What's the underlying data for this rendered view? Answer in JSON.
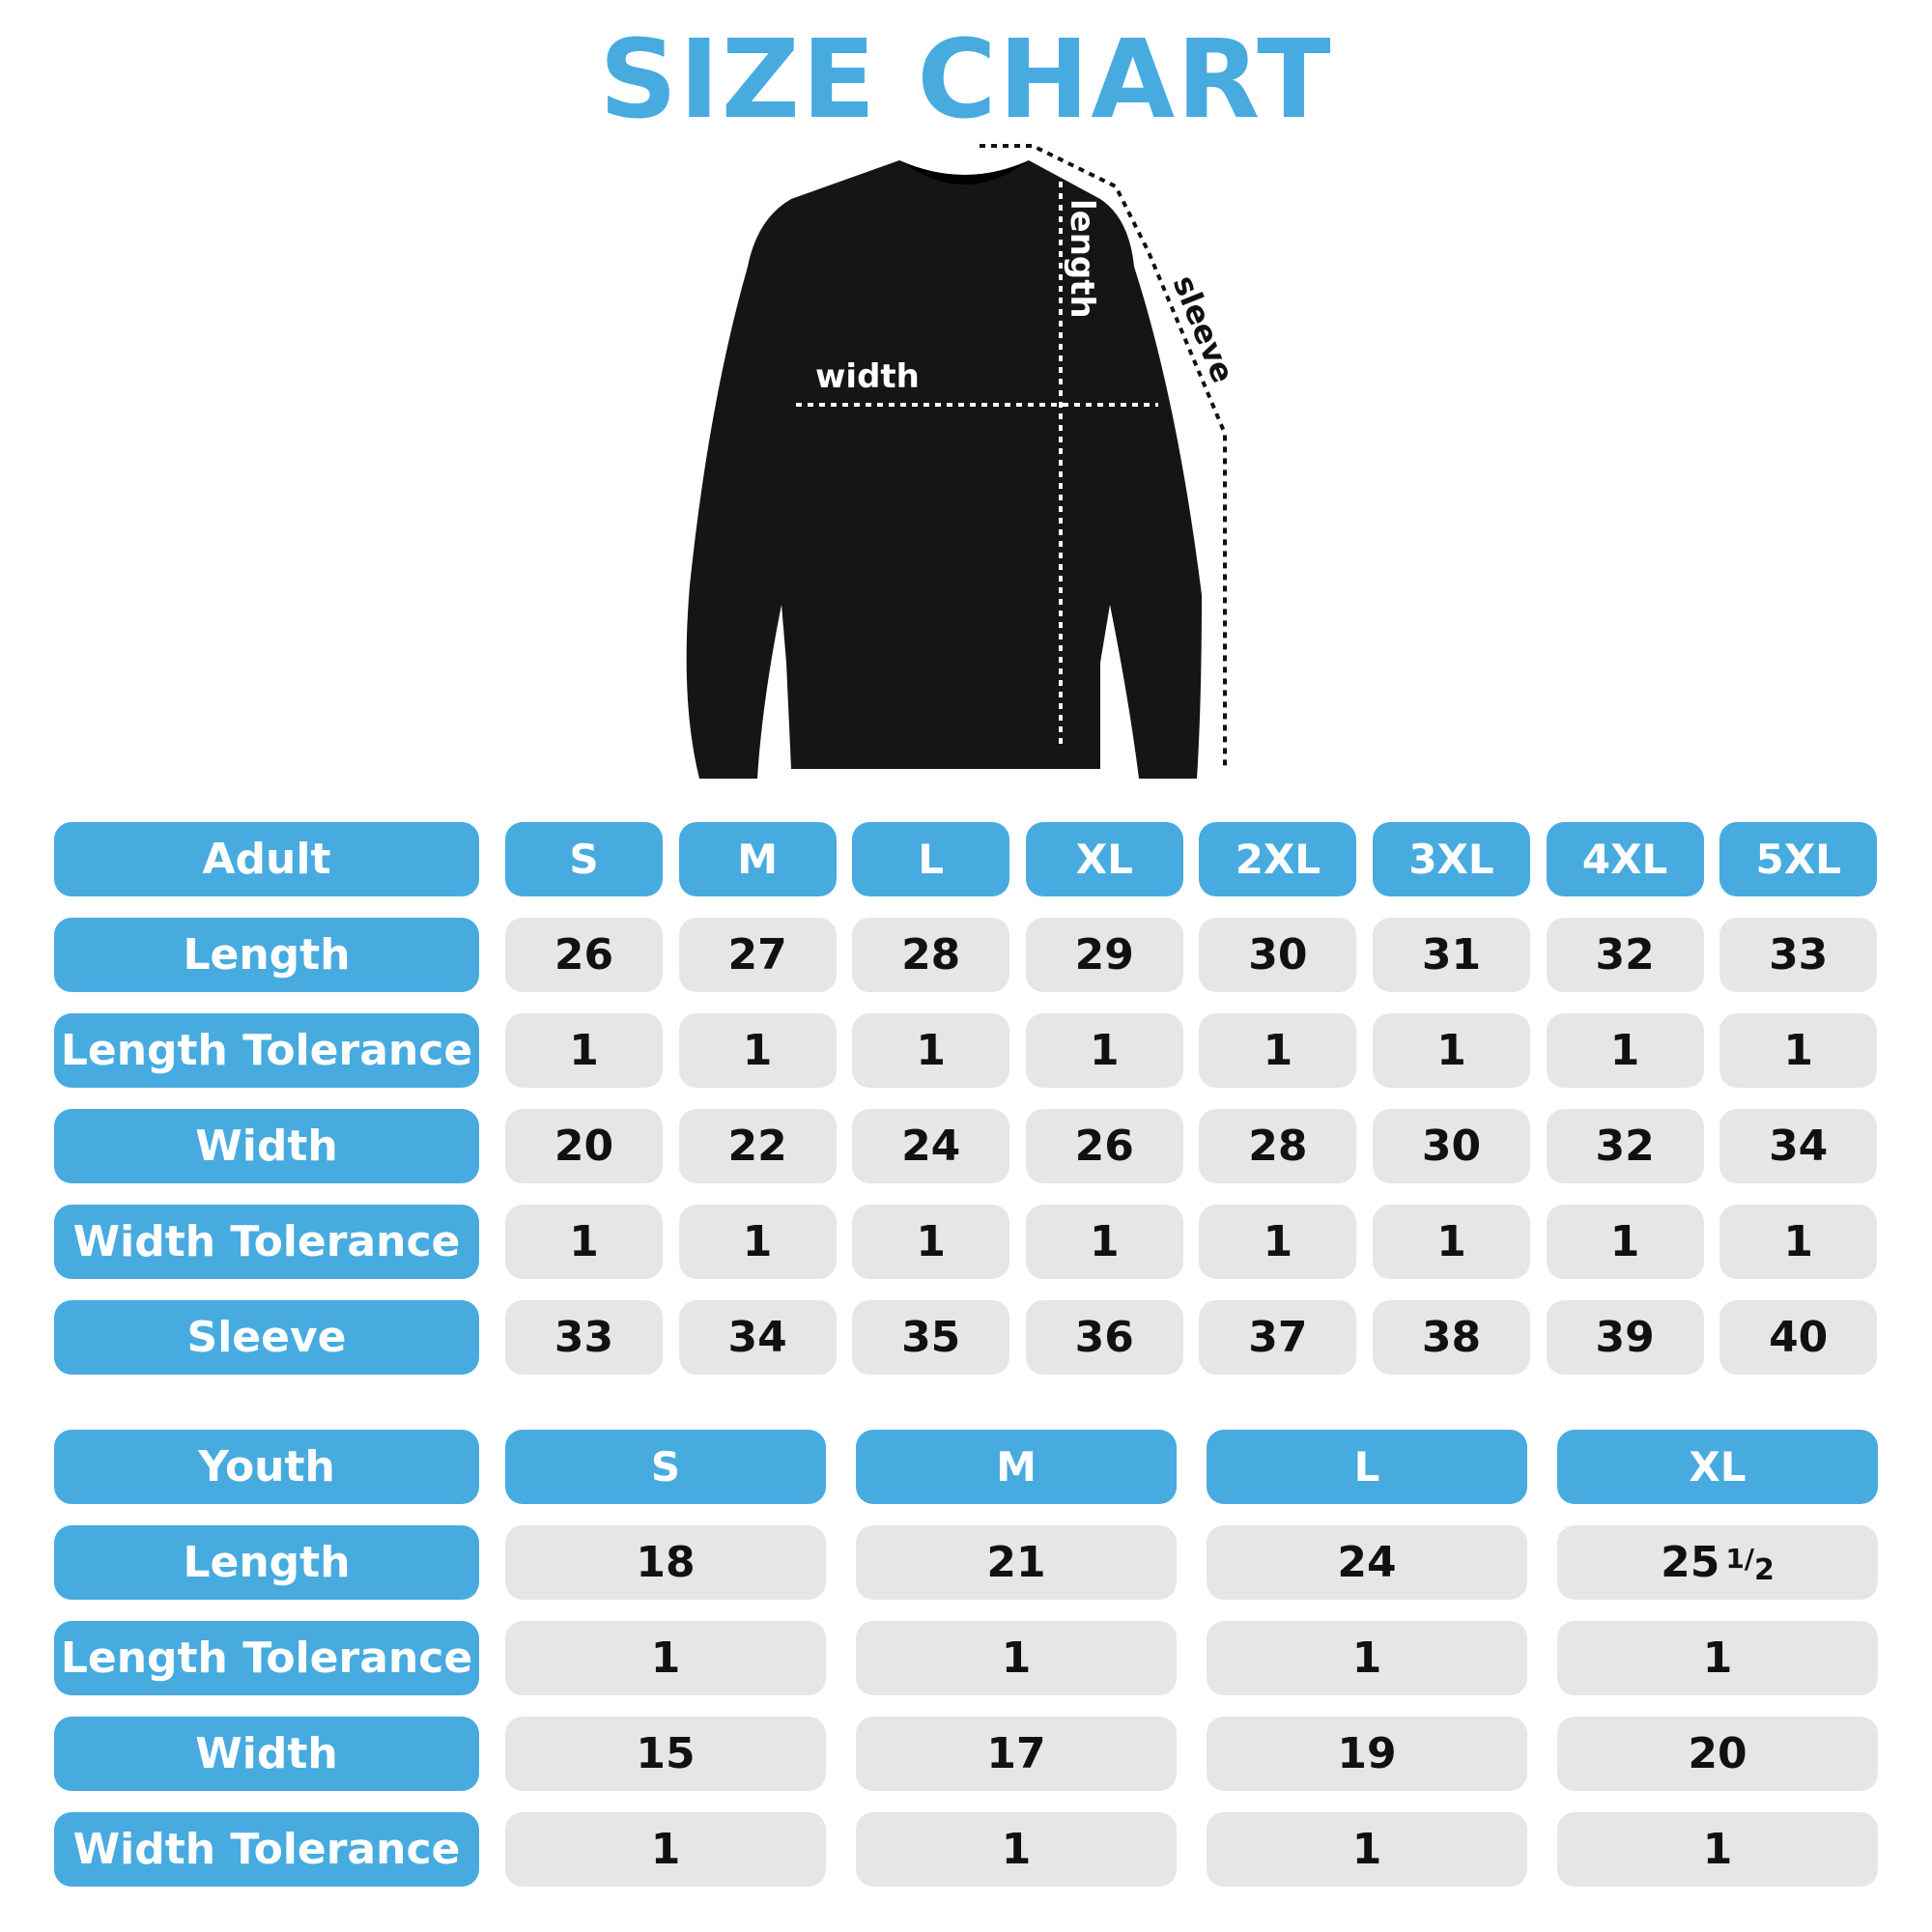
{
  "title": "SIZE CHART",
  "diagram": {
    "length_label": "length",
    "width_label": "width",
    "sleeve_label": "sleeve"
  },
  "colors": {
    "accent": "#47abdf",
    "cell_bg": "#e5e6e8",
    "text": "#111111"
  },
  "adult": {
    "header": "Adult",
    "sizes": [
      "S",
      "M",
      "L",
      "XL",
      "2XL",
      "3XL",
      "4XL",
      "5XL"
    ],
    "rows": [
      {
        "label": "Length",
        "values": [
          "26",
          "27",
          "28",
          "29",
          "30",
          "31",
          "32",
          "33"
        ]
      },
      {
        "label": "Length Tolerance",
        "values": [
          "1",
          "1",
          "1",
          "1",
          "1",
          "1",
          "1",
          "1"
        ]
      },
      {
        "label": "Width",
        "values": [
          "20",
          "22",
          "24",
          "26",
          "28",
          "30",
          "32",
          "34"
        ]
      },
      {
        "label": "Width Tolerance",
        "values": [
          "1",
          "1",
          "1",
          "1",
          "1",
          "1",
          "1",
          "1"
        ]
      },
      {
        "label": "Sleeve",
        "values": [
          "33",
          "34",
          "35",
          "36",
          "37",
          "38",
          "39",
          "40"
        ]
      }
    ]
  },
  "youth": {
    "header": "Youth",
    "sizes": [
      "S",
      "M",
      "L",
      "XL"
    ],
    "rows": [
      {
        "label": "Length",
        "values": [
          "18",
          "21",
          "24",
          "25"
        ]
      },
      {
        "label": "Length Tolerance",
        "values": [
          "1",
          "1",
          "1",
          "1"
        ]
      },
      {
        "label": "Width",
        "values": [
          "15",
          "17",
          "19",
          "20"
        ]
      },
      {
        "label": "Width Tolerance",
        "values": [
          "1",
          "1",
          "1",
          "1"
        ]
      }
    ],
    "xl_length_fraction": {
      "num": "1",
      "den": "2"
    }
  }
}
